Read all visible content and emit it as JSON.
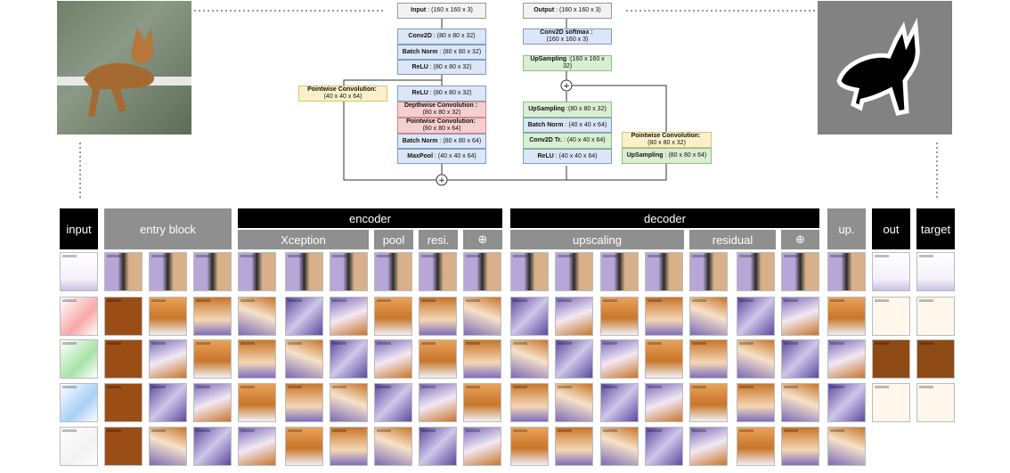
{
  "diagram": {
    "encoder_blocks": [
      {
        "id": "input",
        "label": "Input",
        "shape": ": (160 x 160 x 3)",
        "color": "gray"
      },
      {
        "id": "conv2d",
        "label": "Conv2D",
        "shape": ": (80 x 80 x 32)",
        "color": "blue"
      },
      {
        "id": "batchnorm1",
        "label": "Batch Norm",
        "shape": ": (80 x 80 x 32)",
        "color": "blue"
      },
      {
        "id": "relu1",
        "label": "ReLU",
        "shape": ": (80 x 80 x 32)",
        "color": "blue"
      },
      {
        "id": "relu2",
        "label": "ReLU",
        "shape": ": (80 x 80 x 32)",
        "color": "blue"
      },
      {
        "id": "depthwise",
        "label": "Depthwise Convolution :",
        "shape": "(80 x 80 x 32)",
        "color": "red"
      },
      {
        "id": "pointwise1",
        "label": "Pointwise Convolution:",
        "shape": "(80 x 80 x 64)",
        "color": "red"
      },
      {
        "id": "batchnorm2",
        "label": "Batch Norm",
        "shape": ": (80 x 80 x 64)",
        "color": "blue"
      },
      {
        "id": "maxpool",
        "label": "MaxPool",
        "shape": ": (40 x 40 x 64)",
        "color": "blue"
      }
    ],
    "skip_pointwise": {
      "label": "Pointwise Convolution:",
      "shape": "(40 x 40 x 64)"
    },
    "decoder_blocks": [
      {
        "id": "output",
        "label": "Output",
        "shape": ": (160 x 160 x 3)",
        "color": "gray"
      },
      {
        "id": "conv_softmax",
        "label": "Conv2D softmax :",
        "shape": "(160 x 160 x 3)",
        "color": "blue"
      },
      {
        "id": "upsampling_final",
        "label": "UpSampling",
        "shape": ":(160 x 160 x 32)",
        "color": "green"
      },
      {
        "id": "upsampling_dec",
        "label": "UpSampling",
        "shape": ":(80 x 80 x 32)",
        "color": "green"
      },
      {
        "id": "batchnorm_dec",
        "label": "Batch Norm",
        "shape": ": (40 x 40 x 64)",
        "color": "blue"
      },
      {
        "id": "conv2dtr",
        "label": "Conv2D Tr.",
        "shape": ": (40 x 40 x 64)",
        "color": "green"
      },
      {
        "id": "relu_dec",
        "label": "ReLU",
        "shape": ": (40 x 40 x 64)",
        "color": "blue"
      }
    ],
    "residual_pointwise": {
      "label": "Pointwise Convolution:",
      "shape": "(80 x 80 x 32)"
    },
    "residual_upsampling": {
      "label": "UpSampling",
      "shape": ": (80 x 80 x 64)"
    },
    "add_symbol": "+"
  },
  "headers": {
    "input": "input",
    "entry_block": "entry block",
    "encoder": "encoder",
    "xception": "Xception",
    "pool": "pool",
    "resi": "resi.",
    "oplus1": "⊕",
    "decoder": "decoder",
    "upscaling": "upscaling",
    "residual": "residual",
    "oplus2": "⊕",
    "up": "up.",
    "out": "out",
    "target": "target"
  },
  "colors": {
    "block_blue": "#dbe6f7",
    "block_red": "#f6cfcf",
    "block_green": "#d9eed2",
    "block_yellow": "#fbf1c8",
    "activation_orange": "#c8762a",
    "activation_purple": "#7a6ab8"
  }
}
